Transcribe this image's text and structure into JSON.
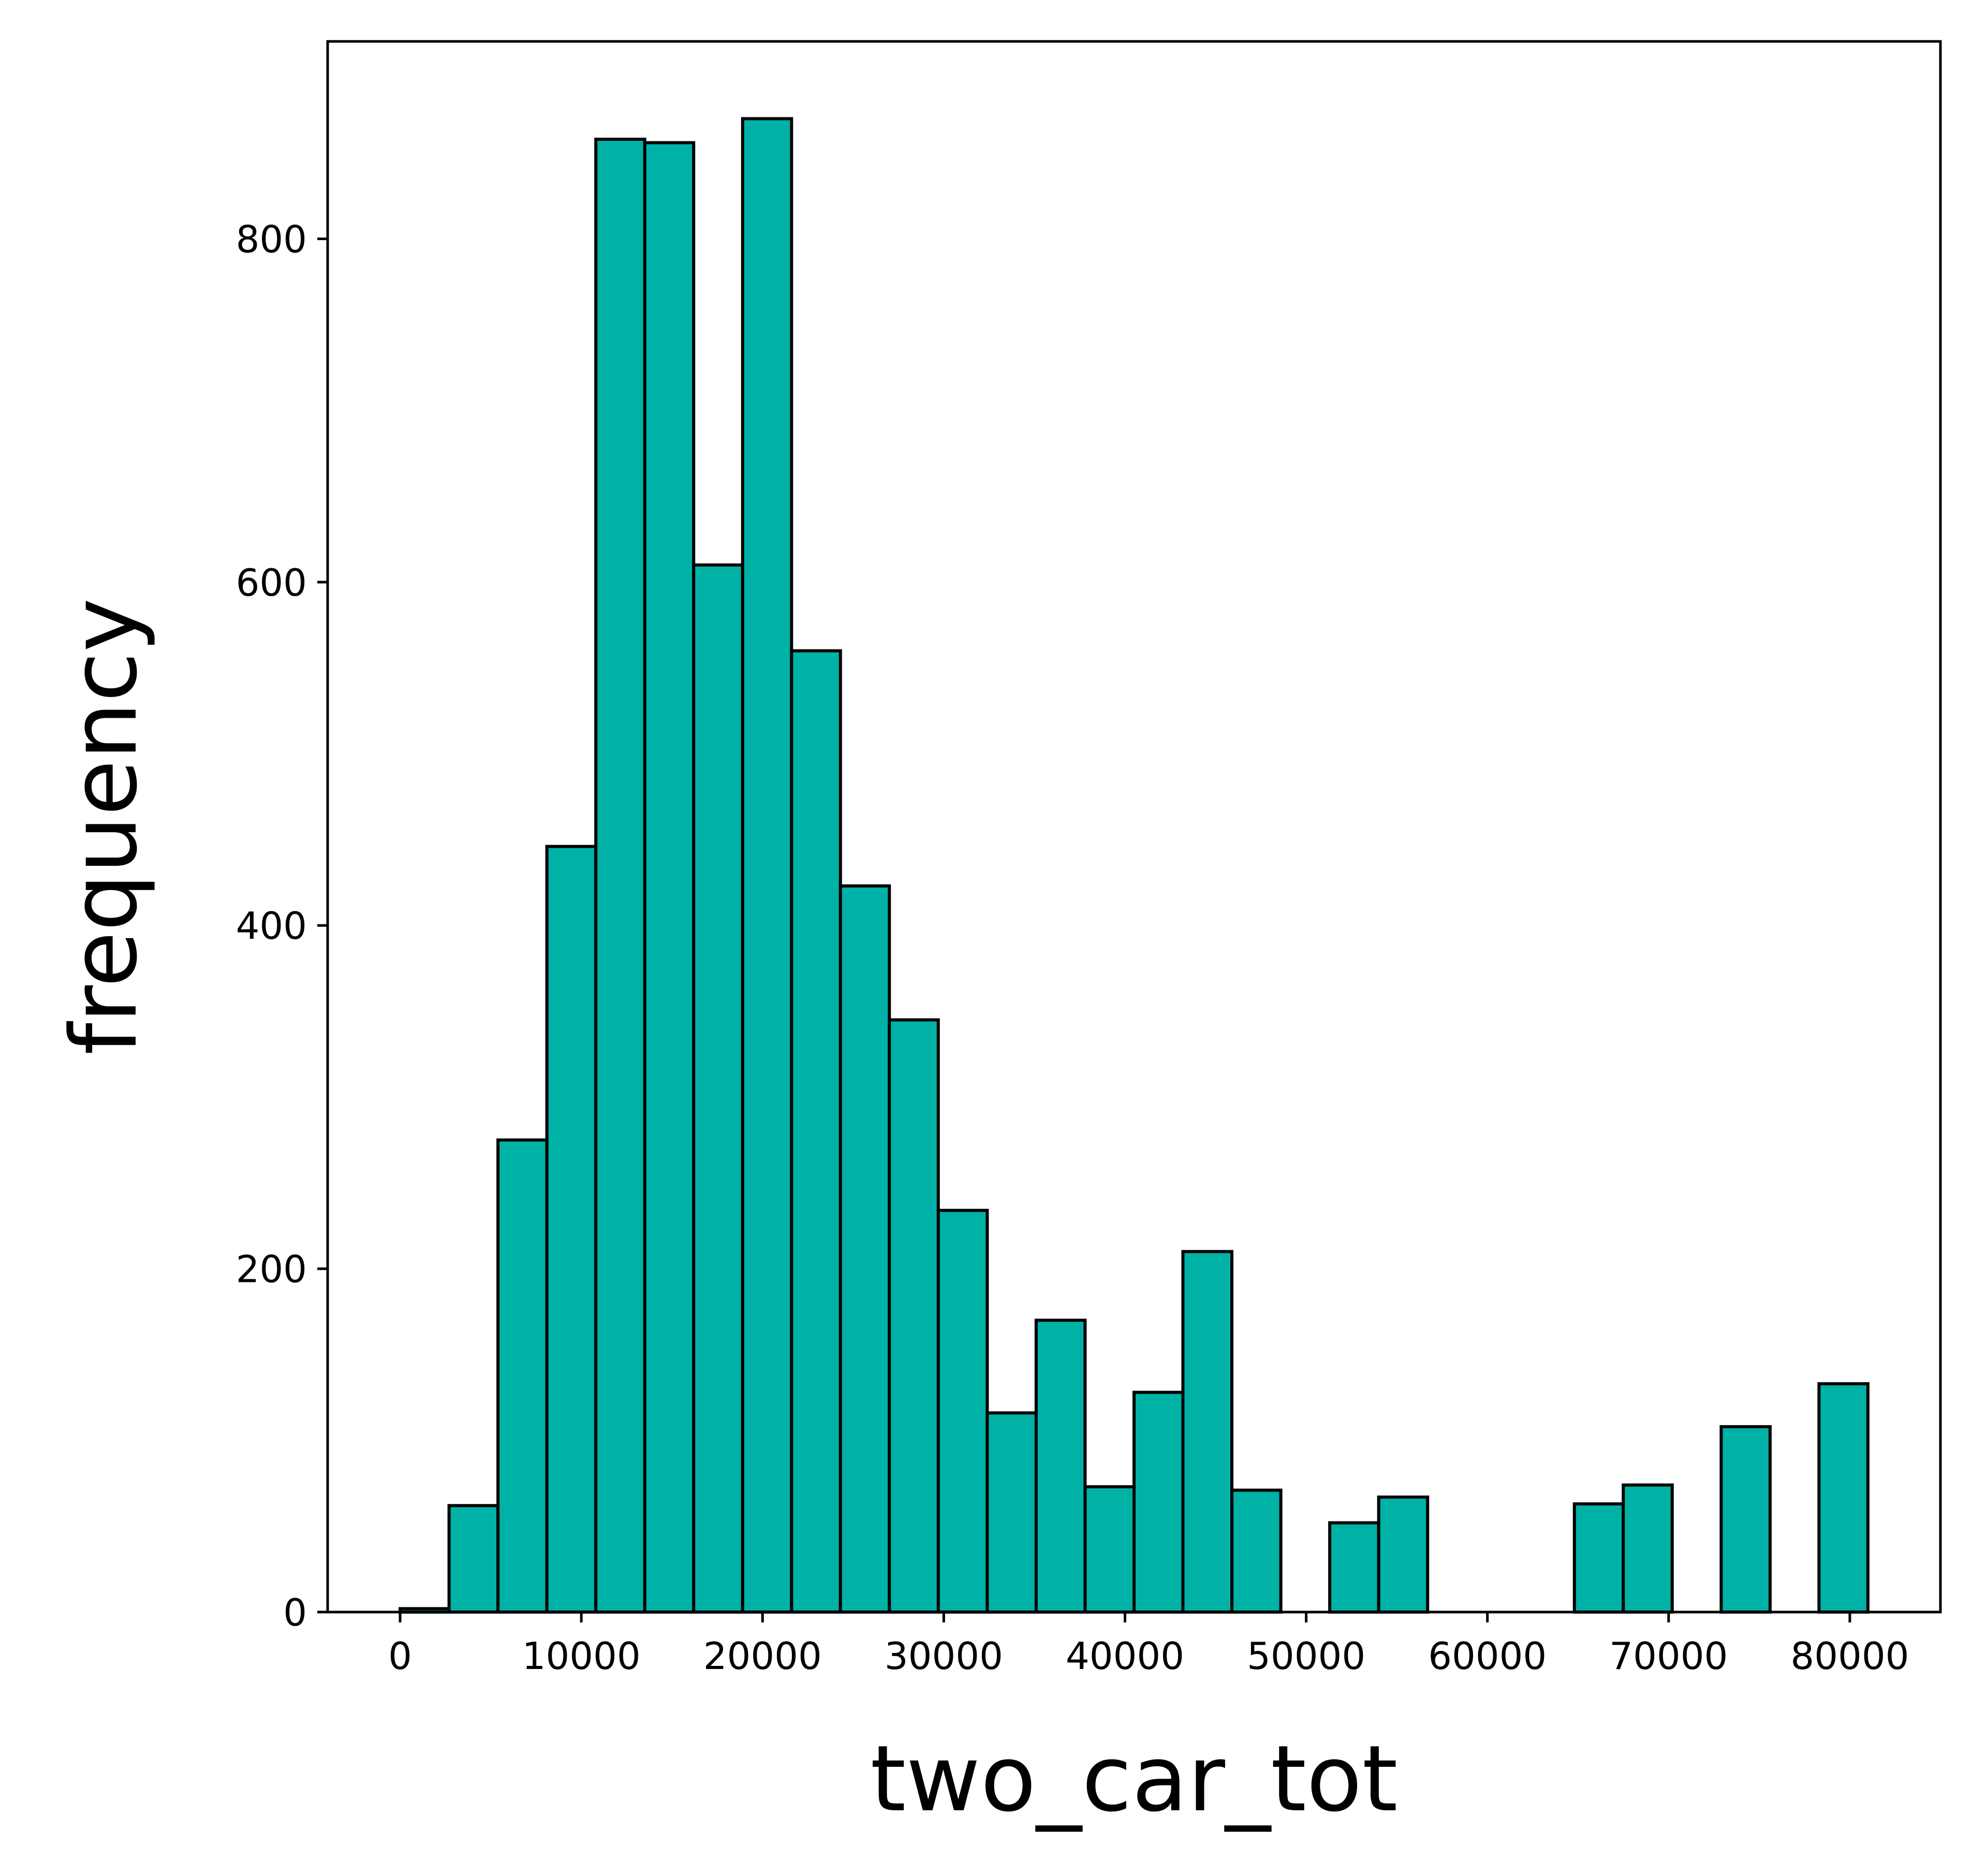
{
  "chart_data": {
    "type": "bar",
    "xlabel": "two_car_tot",
    "ylabel": "frequency",
    "xlim": [
      -4000,
      85000
    ],
    "ylim": [
      0,
      915
    ],
    "xticks": [
      0,
      10000,
      20000,
      30000,
      40000,
      50000,
      60000,
      70000,
      80000
    ],
    "xtick_labels": [
      "0",
      "10000",
      "20000",
      "30000",
      "40000",
      "50000",
      "60000",
      "70000",
      "80000"
    ],
    "yticks": [
      0,
      200,
      400,
      600,
      800
    ],
    "ytick_labels": [
      "0",
      "200",
      "400",
      "600",
      "800"
    ],
    "bin_width": 2700,
    "bins": [
      {
        "start": 0,
        "count": 2
      },
      {
        "start": 2700,
        "count": 62
      },
      {
        "start": 5400,
        "count": 275
      },
      {
        "start": 8100,
        "count": 446
      },
      {
        "start": 10800,
        "count": 858
      },
      {
        "start": 13500,
        "count": 856
      },
      {
        "start": 16200,
        "count": 610
      },
      {
        "start": 18900,
        "count": 870
      },
      {
        "start": 21600,
        "count": 560
      },
      {
        "start": 24300,
        "count": 423
      },
      {
        "start": 27000,
        "count": 345
      },
      {
        "start": 29700,
        "count": 234
      },
      {
        "start": 32400,
        "count": 116
      },
      {
        "start": 35100,
        "count": 170
      },
      {
        "start": 37800,
        "count": 73
      },
      {
        "start": 40500,
        "count": 128
      },
      {
        "start": 43200,
        "count": 210
      },
      {
        "start": 45900,
        "count": 71
      },
      {
        "start": 48600,
        "count": 0
      },
      {
        "start": 51300,
        "count": 52
      },
      {
        "start": 54000,
        "count": 67
      },
      {
        "start": 56700,
        "count": 0
      },
      {
        "start": 59400,
        "count": 0
      },
      {
        "start": 62100,
        "count": 0
      },
      {
        "start": 64800,
        "count": 63
      },
      {
        "start": 67500,
        "count": 74
      },
      {
        "start": 70200,
        "count": 0
      },
      {
        "start": 72900,
        "count": 108
      },
      {
        "start": 75600,
        "count": 0
      },
      {
        "start": 78300,
        "count": 133
      }
    ],
    "bar_color": "#00b2a6",
    "edge_color": "#000000",
    "grid": false,
    "legend": "none"
  }
}
